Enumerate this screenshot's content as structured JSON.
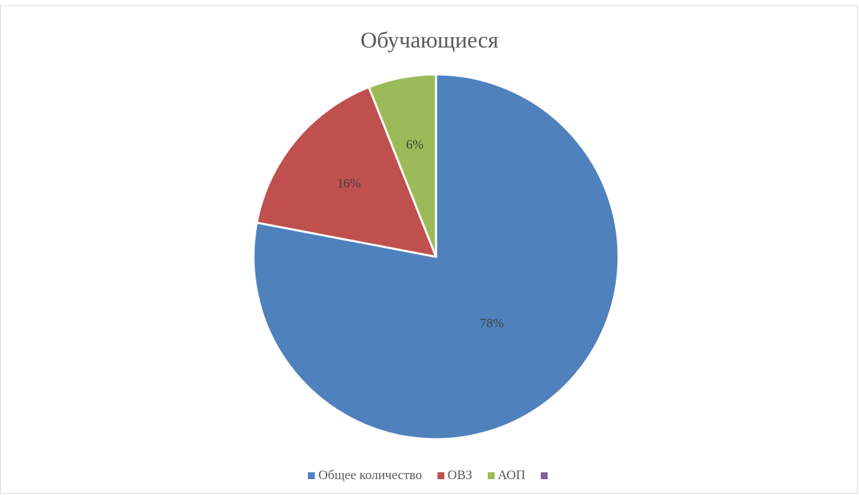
{
  "chart_data": {
    "type": "pie",
    "title": "Обучающиеся",
    "categories": [
      "Общее количество",
      "ОВЗ",
      "АОП",
      ""
    ],
    "values": [
      78,
      16,
      6,
      0
    ],
    "data_labels": [
      "78%",
      "16%",
      "6%",
      ""
    ],
    "colors": [
      "#4f81bd",
      "#c0504d",
      "#9bbb59",
      "#8064a2"
    ],
    "legend_position": "bottom"
  }
}
